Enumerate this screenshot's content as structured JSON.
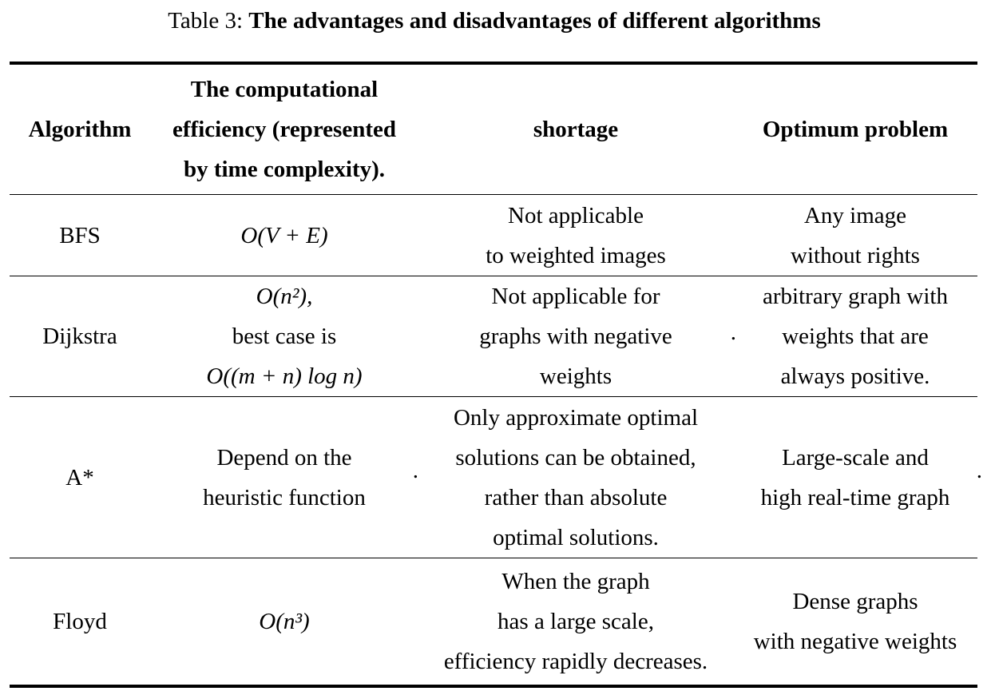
{
  "caption": {
    "label": "Table 3:",
    "title": "The advantages and disadvantages of different algorithms"
  },
  "columns": {
    "algorithm": "Algorithm",
    "efficiency": [
      "The computational",
      "efficiency (represented",
      "by time complexity)."
    ],
    "shortage": "shortage",
    "optimum": "Optimum problem"
  },
  "rows": [
    {
      "algorithm": "BFS",
      "efficiency": [
        "O(V + E)"
      ],
      "shortage": [
        "Not applicable",
        "to weighted images"
      ],
      "optimum": [
        "Any image",
        "without rights"
      ]
    },
    {
      "algorithm": "Dijkstra",
      "efficiency": [
        "O(n²),",
        "best case is",
        "O((m + n) log n)"
      ],
      "shortage": [
        "Not applicable for",
        "graphs with negative",
        "weights"
      ],
      "shortage_trailing": ".",
      "optimum": [
        "arbitrary graph with",
        "weights that are",
        "always positive."
      ]
    },
    {
      "algorithm": "A*",
      "efficiency": [
        "Depend on the",
        "heuristic function"
      ],
      "efficiency_trailing": ".",
      "shortage": [
        "Only approximate optimal",
        "solutions can be obtained,",
        "rather than absolute",
        "optimal solutions."
      ],
      "optimum": [
        "Large-scale and",
        "high real-time graph"
      ],
      "optimum_trailing": "."
    },
    {
      "algorithm": "Floyd",
      "efficiency": [
        "O(n³)"
      ],
      "shortage": [
        "When the graph",
        "has a large scale,",
        "efficiency rapidly decreases."
      ],
      "optimum": [
        "Dense graphs",
        "with negative weights"
      ]
    }
  ]
}
